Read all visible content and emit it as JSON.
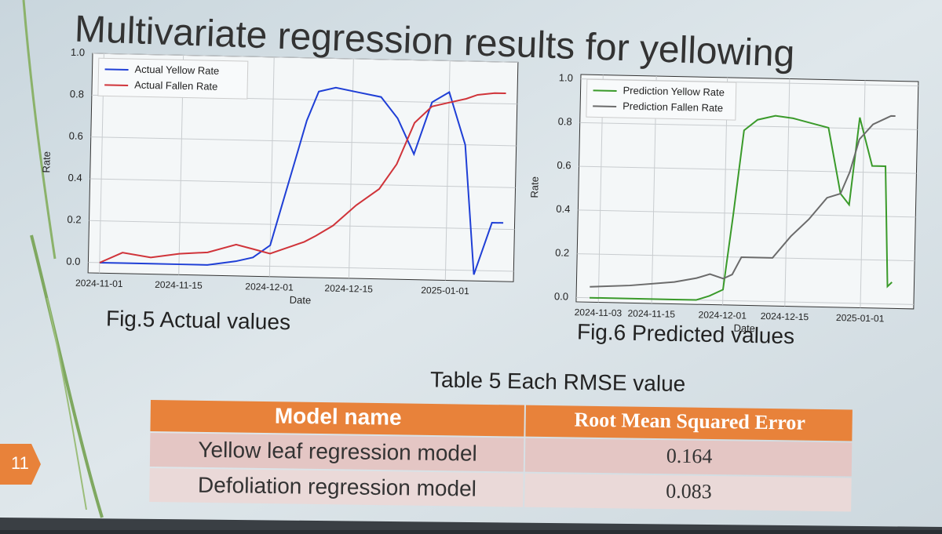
{
  "title": "Multivariate regression results for yellowing",
  "page_number": "11",
  "chart_data": [
    {
      "type": "line",
      "caption": "Fig.5 Actual values",
      "x_label": "Date",
      "y_label": "Rate",
      "x": [
        "2024-11-01",
        "2024-11-05",
        "2024-11-10",
        "2024-11-15",
        "2024-11-20",
        "2024-11-25",
        "2024-11-28",
        "2024-12-01",
        "2024-12-03",
        "2024-12-05",
        "2024-12-07",
        "2024-12-09",
        "2024-12-12",
        "2024-12-16",
        "2024-12-20",
        "2024-12-23",
        "2024-12-26",
        "2024-12-29",
        "2025-01-01",
        "2025-01-04",
        "2025-01-06",
        "2025-01-09",
        "2025-01-11"
      ],
      "series": [
        {
          "name": "Actual Yellow Rate",
          "color": "#1f3fd6",
          "values": [
            0,
            0,
            0,
            0,
            0,
            0.02,
            0.04,
            0.1,
            0.3,
            0.5,
            0.7,
            0.84,
            0.86,
            0.84,
            0.82,
            0.72,
            0.55,
            0.8,
            0.85,
            0.6,
            -0.02,
            0.23,
            0.23
          ]
        },
        {
          "name": "Actual Fallen Rate",
          "color": "#d0343a",
          "values": [
            0,
            0.05,
            0.03,
            0.05,
            0.06,
            0.1,
            0.08,
            0.06,
            0.08,
            0.1,
            0.12,
            0.15,
            0.2,
            0.3,
            0.38,
            0.5,
            0.7,
            0.78,
            0.8,
            0.82,
            0.84,
            0.85,
            0.85
          ]
        }
      ],
      "xlim": [
        "2024-10-30",
        "2025-01-13"
      ],
      "xticks": [
        "2024-11-01",
        "2024-11-15",
        "2024-12-01",
        "2024-12-15",
        "2025-01-01"
      ],
      "ylim": [
        -0.05,
        1.0
      ],
      "yticks": [
        {
          "value": 0,
          "label": "0.0"
        },
        0.2,
        0.4,
        0.6,
        0.8,
        {
          "value": 1,
          "label": "1.0"
        }
      ],
      "grid": true,
      "legend": "upper left"
    },
    {
      "type": "line",
      "caption": "Fig.6 Predicted values",
      "x_label": "Date",
      "y_label": "Rate",
      "x": [
        "2024-11-01",
        "2024-11-10",
        "2024-11-20",
        "2024-11-25",
        "2024-11-28",
        "2024-12-01",
        "2024-12-03",
        "2024-12-05",
        "2024-12-08",
        "2024-12-12",
        "2024-12-16",
        "2024-12-20",
        "2024-12-24",
        "2024-12-27",
        "2024-12-29",
        "2024-12-31",
        "2025-01-03",
        "2025-01-06",
        "2025-01-07",
        "2025-01-08"
      ],
      "series": [
        {
          "name": "Prediction Yellow Rate",
          "color": "#3a9a2a",
          "values": [
            0,
            0,
            0,
            0,
            0.02,
            0.05,
            0.4,
            0.78,
            0.83,
            0.85,
            0.84,
            0.82,
            0.8,
            0.5,
            0.45,
            0.85,
            0.63,
            0.63,
            0.08,
            0.1
          ]
        },
        {
          "name": "Prediction Fallen Rate",
          "color": "#6b6b6b",
          "values": [
            0.05,
            0.06,
            0.08,
            0.1,
            0.12,
            0.1,
            0.12,
            0.2,
            0.2,
            0.2,
            0.3,
            0.38,
            0.48,
            0.5,
            0.6,
            0.75,
            0.82,
            0.85,
            0.86,
            0.86
          ]
        }
      ],
      "xlim": [
        "2024-10-29",
        "2025-01-13"
      ],
      "xticks": [
        "2024-11-03",
        "2024-11-15",
        "2024-12-01",
        "2024-12-15",
        "2025-01-01"
      ],
      "ylim": [
        -0.02,
        1.02
      ],
      "yticks": [
        {
          "value": 0,
          "label": "0.0"
        },
        0.2,
        0.4,
        0.6,
        0.8,
        {
          "value": 1,
          "label": "1.0"
        }
      ],
      "grid": true,
      "legend": "upper left"
    }
  ],
  "table": {
    "caption": "Table 5 Each RMSE value",
    "columns": [
      "Model name",
      "Root Mean Squared Error"
    ],
    "rows": [
      [
        "Yellow leaf regression model",
        0.164
      ],
      [
        "Defoliation regression model",
        0.083
      ]
    ]
  }
}
